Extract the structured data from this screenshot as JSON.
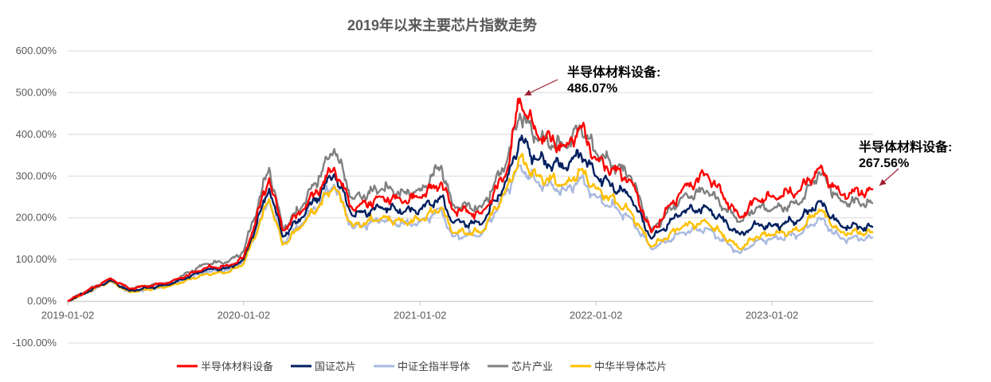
{
  "chart_data": {
    "type": "line",
    "title": "2019年以来主要芯片指数走势",
    "xlabel": "",
    "ylabel": "",
    "ylim": [
      -100,
      600
    ],
    "y_ticks": [
      -100,
      0,
      100,
      200,
      300,
      400,
      500,
      600
    ],
    "y_tick_labels": [
      "-100.00%",
      "0.00%",
      "100.00%",
      "200.00%",
      "300.00%",
      "400.00%",
      "500.00%",
      "600.00%"
    ],
    "x_range": [
      "2019-01-02",
      "2023-07-31"
    ],
    "x_tick_labels": [
      "2019-01-02",
      "2020-01-02",
      "2021-01-02",
      "2022-01-02",
      "2023-01-02"
    ],
    "grid": "horizontal",
    "legend": "bottom",
    "series": [
      {
        "name": "半导体材料设备",
        "color": "#ff0000",
        "points": [
          [
            "2019-01-02",
            0
          ],
          [
            "2019-04-01",
            55
          ],
          [
            "2019-05-10",
            30
          ],
          [
            "2019-08-01",
            45
          ],
          [
            "2019-10-15",
            80
          ],
          [
            "2019-12-02",
            85
          ],
          [
            "2020-01-02",
            105
          ],
          [
            "2020-02-24",
            295
          ],
          [
            "2020-03-23",
            170
          ],
          [
            "2020-05-01",
            215
          ],
          [
            "2020-07-08",
            320
          ],
          [
            "2020-08-15",
            220
          ],
          [
            "2020-10-15",
            250
          ],
          [
            "2020-12-01",
            240
          ],
          [
            "2021-01-02",
            250
          ],
          [
            "2021-02-15",
            285
          ],
          [
            "2021-03-10",
            220
          ],
          [
            "2021-05-10",
            210
          ],
          [
            "2021-07-01",
            310
          ],
          [
            "2021-07-28",
            486.07
          ],
          [
            "2021-09-01",
            400
          ],
          [
            "2021-11-01",
            370
          ],
          [
            "2021-12-01",
            420
          ],
          [
            "2022-01-02",
            340
          ],
          [
            "2022-03-15",
            290
          ],
          [
            "2022-04-27",
            165
          ],
          [
            "2022-07-01",
            270
          ],
          [
            "2022-08-20",
            305
          ],
          [
            "2022-10-28",
            200
          ],
          [
            "2022-12-01",
            245
          ],
          [
            "2023-01-02",
            250
          ],
          [
            "2023-03-01",
            265
          ],
          [
            "2023-04-10",
            320
          ],
          [
            "2023-05-25",
            255
          ],
          [
            "2023-07-31",
            267.56
          ]
        ]
      },
      {
        "name": "国证芯片",
        "color": "#002060",
        "points": [
          [
            "2019-01-02",
            0
          ],
          [
            "2019-04-01",
            50
          ],
          [
            "2019-05-10",
            25
          ],
          [
            "2019-08-01",
            40
          ],
          [
            "2019-10-15",
            75
          ],
          [
            "2019-12-02",
            80
          ],
          [
            "2020-01-02",
            100
          ],
          [
            "2020-02-24",
            270
          ],
          [
            "2020-03-23",
            155
          ],
          [
            "2020-05-01",
            200
          ],
          [
            "2020-07-08",
            305
          ],
          [
            "2020-08-15",
            205
          ],
          [
            "2020-10-15",
            225
          ],
          [
            "2020-12-01",
            215
          ],
          [
            "2021-01-02",
            220
          ],
          [
            "2021-02-15",
            250
          ],
          [
            "2021-03-10",
            190
          ],
          [
            "2021-05-10",
            185
          ],
          [
            "2021-07-01",
            290
          ],
          [
            "2021-07-28",
            390
          ],
          [
            "2021-09-01",
            340
          ],
          [
            "2021-11-01",
            320
          ],
          [
            "2021-12-01",
            355
          ],
          [
            "2022-01-02",
            300
          ],
          [
            "2022-03-15",
            250
          ],
          [
            "2022-04-27",
            150
          ],
          [
            "2022-07-01",
            215
          ],
          [
            "2022-08-20",
            225
          ],
          [
            "2022-10-28",
            160
          ],
          [
            "2022-12-01",
            185
          ],
          [
            "2023-01-02",
            180
          ],
          [
            "2023-03-01",
            195
          ],
          [
            "2023-04-10",
            240
          ],
          [
            "2023-05-25",
            180
          ],
          [
            "2023-07-31",
            178
          ]
        ]
      },
      {
        "name": "中证全指半导体",
        "color": "#a9b9e0",
        "points": [
          [
            "2019-01-02",
            0
          ],
          [
            "2019-04-01",
            48
          ],
          [
            "2019-05-10",
            22
          ],
          [
            "2019-08-01",
            38
          ],
          [
            "2019-10-15",
            70
          ],
          [
            "2019-12-02",
            75
          ],
          [
            "2020-01-02",
            95
          ],
          [
            "2020-02-24",
            245
          ],
          [
            "2020-03-23",
            140
          ],
          [
            "2020-05-01",
            185
          ],
          [
            "2020-07-08",
            280
          ],
          [
            "2020-08-15",
            175
          ],
          [
            "2020-10-15",
            195
          ],
          [
            "2020-12-01",
            185
          ],
          [
            "2021-01-02",
            190
          ],
          [
            "2021-02-15",
            220
          ],
          [
            "2021-03-10",
            155
          ],
          [
            "2021-05-10",
            160
          ],
          [
            "2021-07-01",
            265
          ],
          [
            "2021-07-28",
            325
          ],
          [
            "2021-09-01",
            285
          ],
          [
            "2021-11-01",
            265
          ],
          [
            "2021-12-01",
            295
          ],
          [
            "2022-01-02",
            250
          ],
          [
            "2022-03-15",
            200
          ],
          [
            "2022-04-27",
            125
          ],
          [
            "2022-07-01",
            165
          ],
          [
            "2022-08-20",
            175
          ],
          [
            "2022-10-28",
            115
          ],
          [
            "2022-12-01",
            145
          ],
          [
            "2023-01-02",
            150
          ],
          [
            "2023-03-01",
            160
          ],
          [
            "2023-04-10",
            200
          ],
          [
            "2023-05-25",
            150
          ],
          [
            "2023-07-31",
            152
          ]
        ]
      },
      {
        "name": "芯片产业",
        "color": "#808080",
        "points": [
          [
            "2019-01-02",
            0
          ],
          [
            "2019-04-01",
            55
          ],
          [
            "2019-05-10",
            30
          ],
          [
            "2019-08-01",
            45
          ],
          [
            "2019-10-15",
            90
          ],
          [
            "2019-12-02",
            95
          ],
          [
            "2020-01-02",
            120
          ],
          [
            "2020-02-24",
            320
          ],
          [
            "2020-03-23",
            175
          ],
          [
            "2020-05-01",
            225
          ],
          [
            "2020-07-08",
            365
          ],
          [
            "2020-08-15",
            245
          ],
          [
            "2020-10-15",
            270
          ],
          [
            "2020-12-01",
            260
          ],
          [
            "2021-01-02",
            265
          ],
          [
            "2021-02-15",
            325
          ],
          [
            "2021-03-10",
            230
          ],
          [
            "2021-05-10",
            225
          ],
          [
            "2021-07-01",
            335
          ],
          [
            "2021-07-28",
            450
          ],
          [
            "2021-09-01",
            390
          ],
          [
            "2021-11-01",
            370
          ],
          [
            "2021-12-01",
            420
          ],
          [
            "2022-01-02",
            355
          ],
          [
            "2022-03-15",
            300
          ],
          [
            "2022-04-27",
            170
          ],
          [
            "2022-07-01",
            250
          ],
          [
            "2022-08-20",
            265
          ],
          [
            "2022-10-28",
            190
          ],
          [
            "2022-12-01",
            225
          ],
          [
            "2023-01-02",
            220
          ],
          [
            "2023-03-01",
            235
          ],
          [
            "2023-04-10",
            310
          ],
          [
            "2023-05-25",
            240
          ],
          [
            "2023-07-31",
            235
          ]
        ]
      },
      {
        "name": "中华半导体芯片",
        "color": "#ffc000",
        "points": [
          [
            "2019-01-02",
            0
          ],
          [
            "2019-04-01",
            48
          ],
          [
            "2019-05-10",
            22
          ],
          [
            "2019-08-01",
            36
          ],
          [
            "2019-10-15",
            65
          ],
          [
            "2019-12-02",
            70
          ],
          [
            "2020-01-02",
            90
          ],
          [
            "2020-02-24",
            245
          ],
          [
            "2020-03-23",
            135
          ],
          [
            "2020-05-01",
            180
          ],
          [
            "2020-07-08",
            275
          ],
          [
            "2020-08-15",
            180
          ],
          [
            "2020-10-15",
            200
          ],
          [
            "2020-12-01",
            190
          ],
          [
            "2021-01-02",
            195
          ],
          [
            "2021-02-15",
            225
          ],
          [
            "2021-03-10",
            165
          ],
          [
            "2021-05-10",
            165
          ],
          [
            "2021-07-01",
            270
          ],
          [
            "2021-07-28",
            345
          ],
          [
            "2021-09-01",
            300
          ],
          [
            "2021-11-01",
            280
          ],
          [
            "2021-12-01",
            315
          ],
          [
            "2022-01-02",
            270
          ],
          [
            "2022-03-15",
            215
          ],
          [
            "2022-04-27",
            130
          ],
          [
            "2022-07-01",
            180
          ],
          [
            "2022-08-20",
            190
          ],
          [
            "2022-10-28",
            125
          ],
          [
            "2022-12-01",
            155
          ],
          [
            "2023-01-02",
            160
          ],
          [
            "2023-03-01",
            170
          ],
          [
            "2023-04-10",
            220
          ],
          [
            "2023-05-25",
            165
          ],
          [
            "2023-07-31",
            165
          ]
        ]
      }
    ],
    "annotations": [
      {
        "lines": [
          "半导体材料设备:",
          "486.07%"
        ],
        "point": [
          "2021-07-28",
          486.07
        ],
        "color": "#9b1c2e"
      },
      {
        "lines": [
          "半导体材料设备:",
          "267.56%"
        ],
        "point": [
          "2023-07-31",
          267.56
        ],
        "color": "#9b1c2e"
      }
    ]
  }
}
